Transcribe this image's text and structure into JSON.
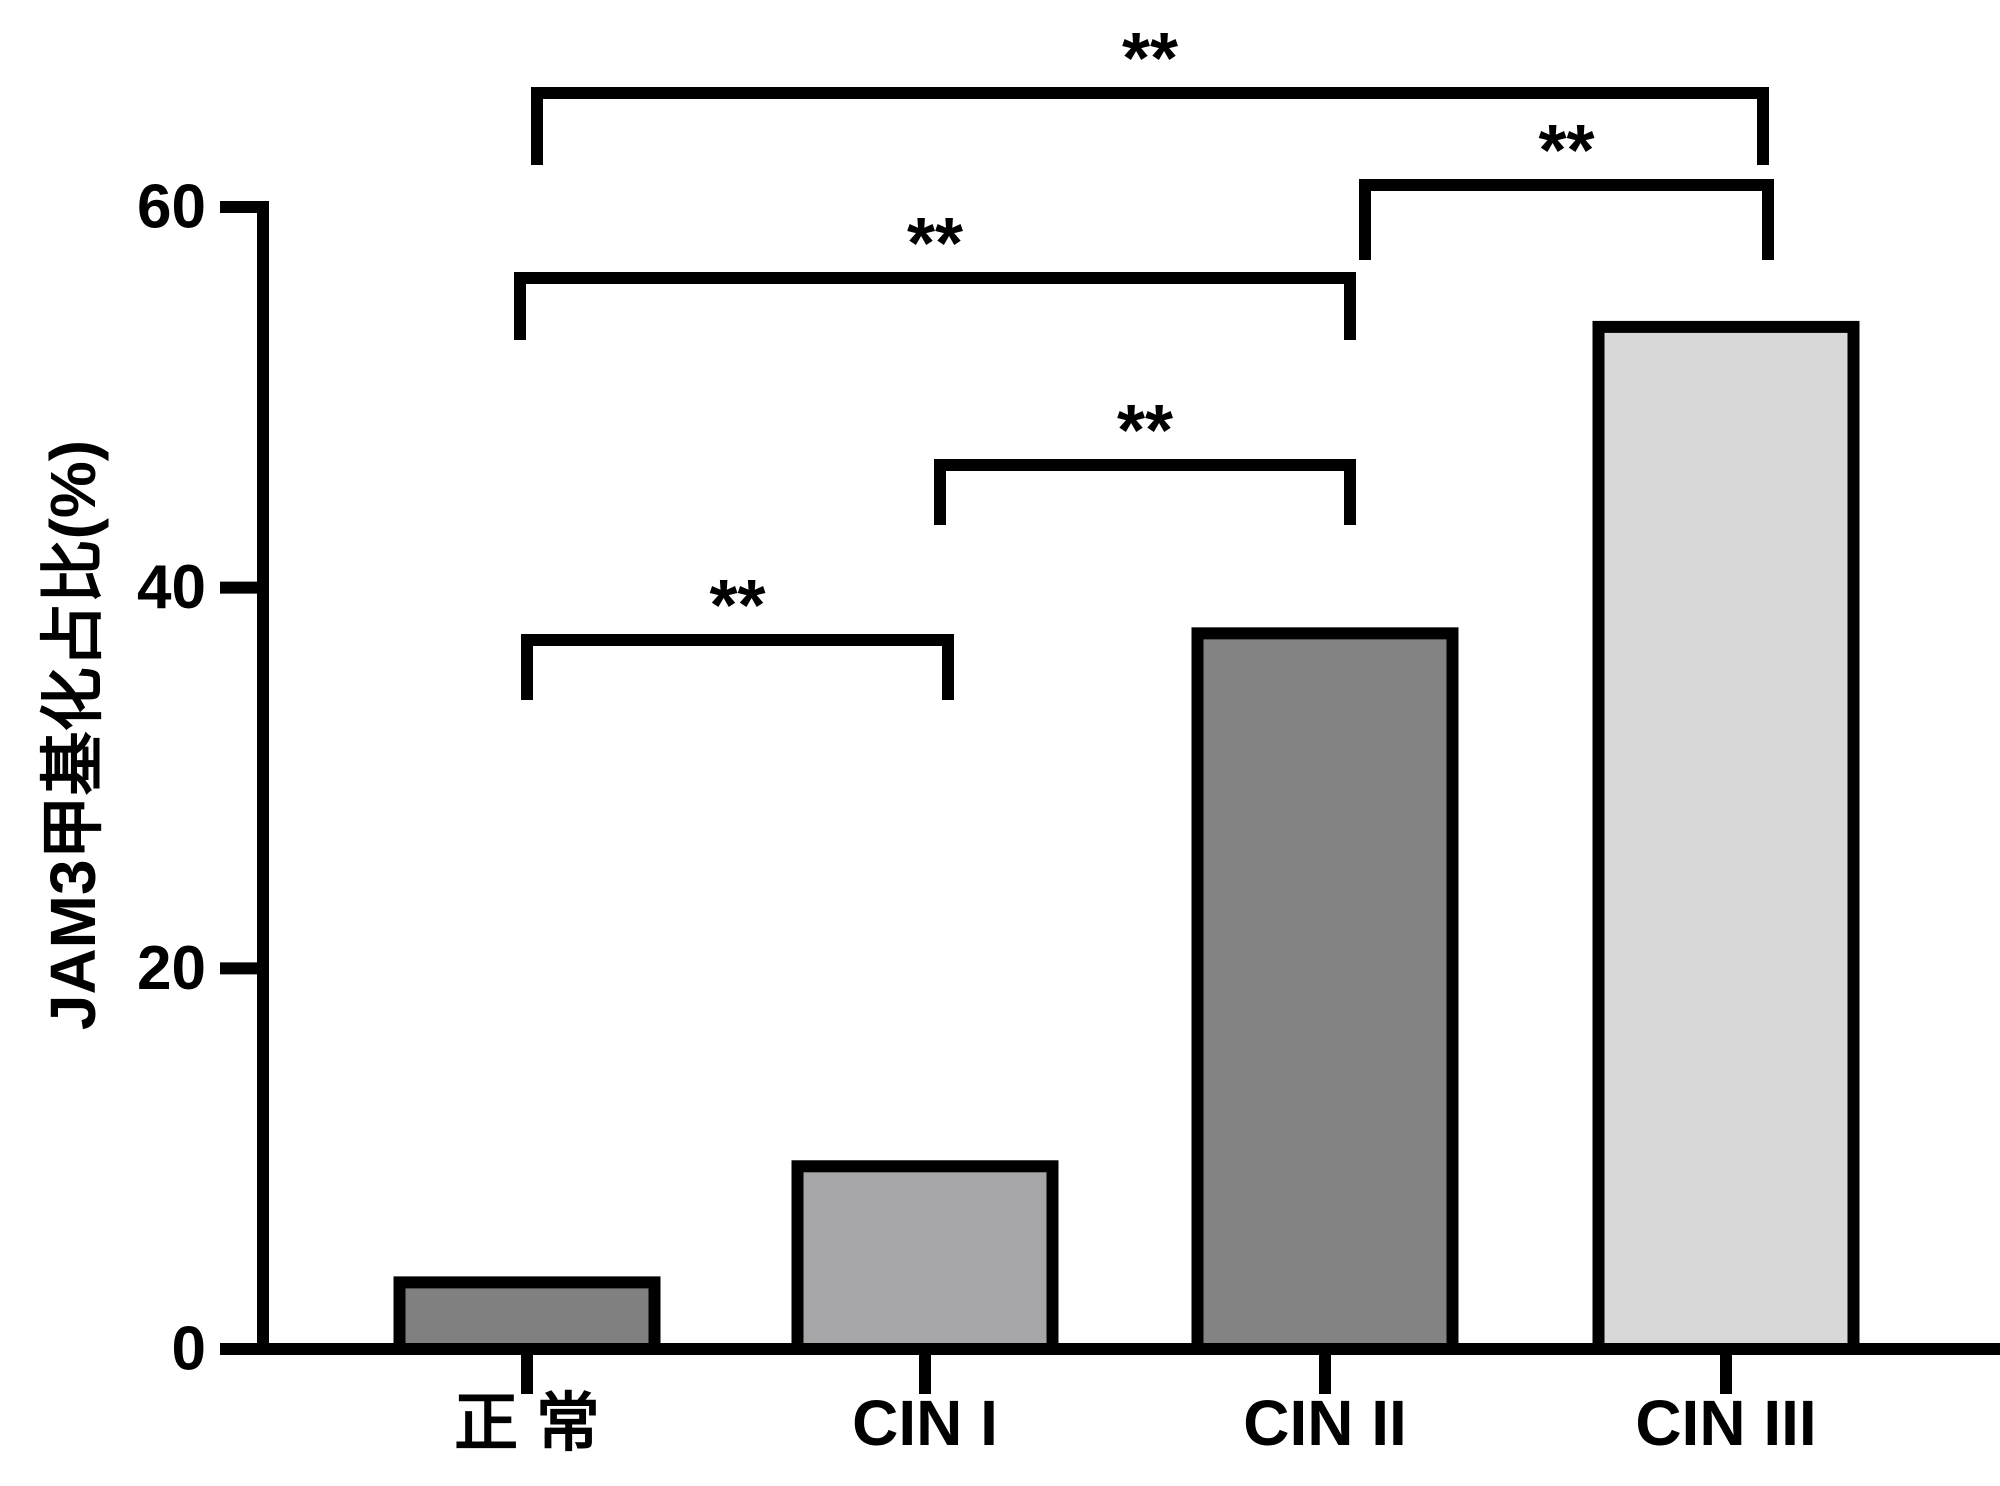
{
  "chart_data": {
    "type": "bar",
    "title": "",
    "xlabel": "",
    "ylabel": "JAM3甲基化占比(%)",
    "ylim": [
      0,
      60
    ],
    "yticks": [
      0,
      20,
      40,
      60
    ],
    "yticks_text": [
      "0",
      "20",
      "40",
      "60"
    ],
    "categories": [
      "正 常",
      "CIN I",
      "CIN II",
      "CIN III"
    ],
    "values": [
      3.5,
      9.6,
      37.6,
      53.7
    ],
    "bar_colors": [
      "#808080",
      "#a6a6a8",
      "#838383",
      "#d8d8d8"
    ],
    "edge_color": "#000000",
    "grid": false,
    "legend": "none",
    "comparisons": [
      {
        "from": 0,
        "to": 1,
        "label": "**"
      },
      {
        "from": 1,
        "to": 2,
        "label": "**"
      },
      {
        "from": 0,
        "to": 2,
        "label": "**"
      },
      {
        "from": 2,
        "to": 3,
        "label": "**"
      },
      {
        "from": 0,
        "to": 3,
        "label": "**"
      }
    ]
  }
}
